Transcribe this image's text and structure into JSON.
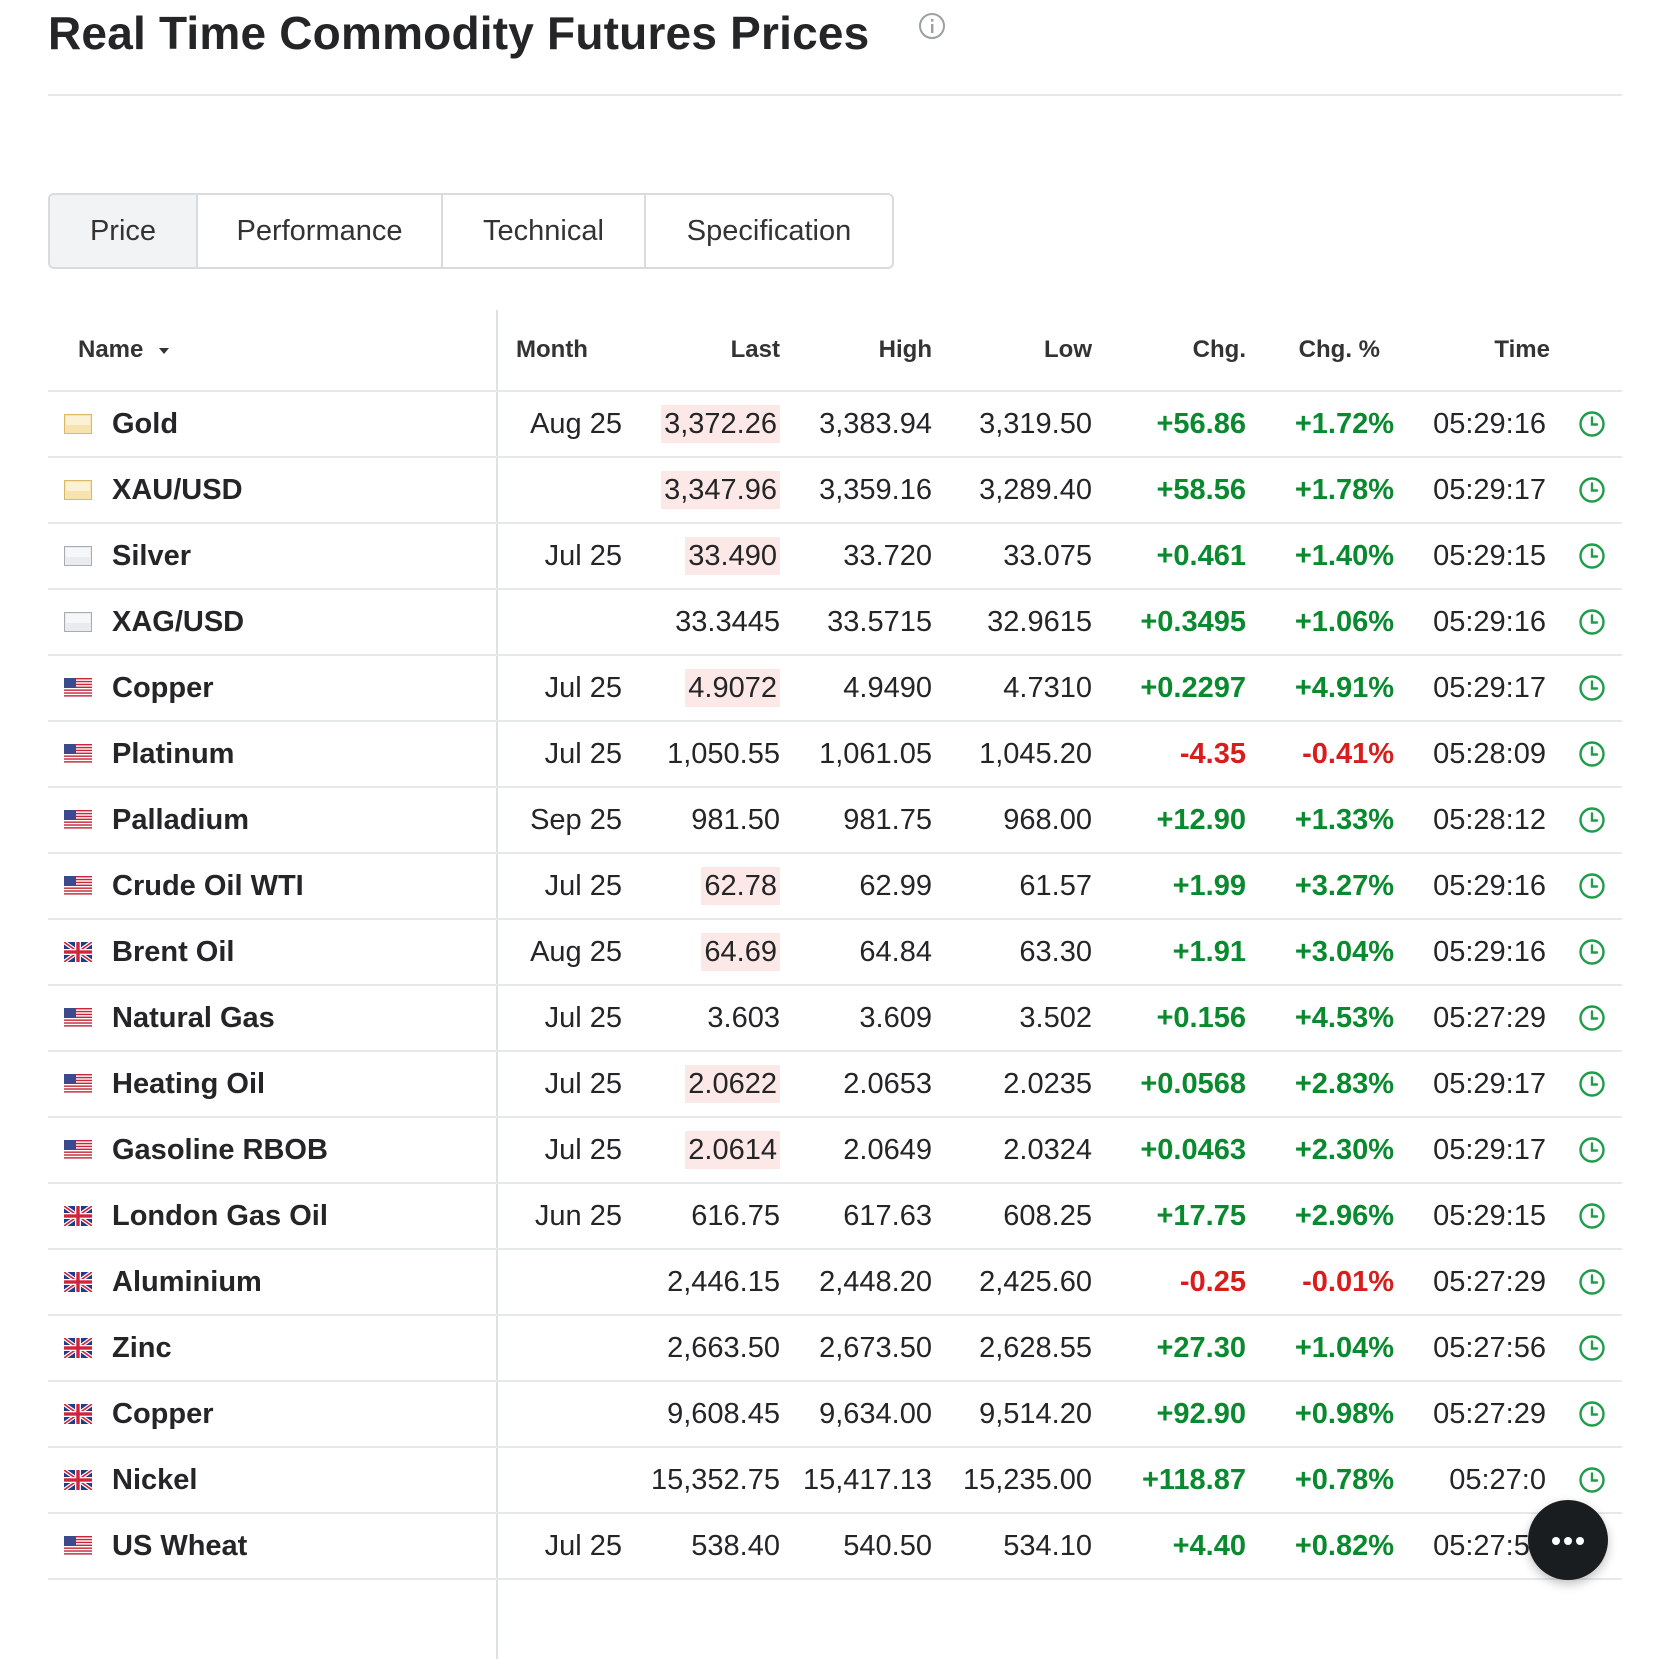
{
  "header": {
    "title": "Real Time Commodity Futures Prices"
  },
  "tabs": [
    {
      "label": "Price",
      "active": true
    },
    {
      "label": "Performance",
      "active": false
    },
    {
      "label": "Technical",
      "active": false
    },
    {
      "label": "Specification",
      "active": false
    }
  ],
  "table": {
    "columns": {
      "name": "Name",
      "month": "Month",
      "last": "Last",
      "high": "High",
      "low": "Low",
      "chg": "Chg.",
      "chg_pct": "Chg. %",
      "time": "Time"
    },
    "rows": [
      {
        "flag": "gold-square",
        "name": "Gold",
        "month": "Aug 25",
        "last": "3,372.26",
        "last_highlight": true,
        "high": "3,383.94",
        "low": "3,319.50",
        "chg": "+56.86",
        "chg_pct": "+1.72%",
        "time": "05:29:16",
        "direction": "up"
      },
      {
        "flag": "gold-square",
        "name": "XAU/USD",
        "month": "",
        "last": "3,347.96",
        "last_highlight": true,
        "high": "3,359.16",
        "low": "3,289.40",
        "chg": "+58.56",
        "chg_pct": "+1.78%",
        "time": "05:29:17",
        "direction": "up"
      },
      {
        "flag": "silver-square",
        "name": "Silver",
        "month": "Jul 25",
        "last": "33.490",
        "last_highlight": true,
        "high": "33.720",
        "low": "33.075",
        "chg": "+0.461",
        "chg_pct": "+1.40%",
        "time": "05:29:15",
        "direction": "up"
      },
      {
        "flag": "silver-square",
        "name": "XAG/USD",
        "month": "",
        "last": "33.3445",
        "last_highlight": false,
        "high": "33.5715",
        "low": "32.9615",
        "chg": "+0.3495",
        "chg_pct": "+1.06%",
        "time": "05:29:16",
        "direction": "up"
      },
      {
        "flag": "us-flag",
        "name": "Copper",
        "month": "Jul 25",
        "last": "4.9072",
        "last_highlight": true,
        "high": "4.9490",
        "low": "4.7310",
        "chg": "+0.2297",
        "chg_pct": "+4.91%",
        "time": "05:29:17",
        "direction": "up"
      },
      {
        "flag": "us-flag",
        "name": "Platinum",
        "month": "Jul 25",
        "last": "1,050.55",
        "last_highlight": false,
        "high": "1,061.05",
        "low": "1,045.20",
        "chg": "-4.35",
        "chg_pct": "-0.41%",
        "time": "05:28:09",
        "direction": "down"
      },
      {
        "flag": "us-flag",
        "name": "Palladium",
        "month": "Sep 25",
        "last": "981.50",
        "last_highlight": false,
        "high": "981.75",
        "low": "968.00",
        "chg": "+12.90",
        "chg_pct": "+1.33%",
        "time": "05:28:12",
        "direction": "up"
      },
      {
        "flag": "us-flag",
        "name": "Crude Oil WTI",
        "month": "Jul 25",
        "last": "62.78",
        "last_highlight": true,
        "high": "62.99",
        "low": "61.57",
        "chg": "+1.99",
        "chg_pct": "+3.27%",
        "time": "05:29:16",
        "direction": "up"
      },
      {
        "flag": "uk-flag",
        "name": "Brent Oil",
        "month": "Aug 25",
        "last": "64.69",
        "last_highlight": true,
        "high": "64.84",
        "low": "63.30",
        "chg": "+1.91",
        "chg_pct": "+3.04%",
        "time": "05:29:16",
        "direction": "up"
      },
      {
        "flag": "us-flag",
        "name": "Natural Gas",
        "month": "Jul 25",
        "last": "3.603",
        "last_highlight": false,
        "high": "3.609",
        "low": "3.502",
        "chg": "+0.156",
        "chg_pct": "+4.53%",
        "time": "05:27:29",
        "direction": "up"
      },
      {
        "flag": "us-flag",
        "name": "Heating Oil",
        "month": "Jul 25",
        "last": "2.0622",
        "last_highlight": true,
        "high": "2.0653",
        "low": "2.0235",
        "chg": "+0.0568",
        "chg_pct": "+2.83%",
        "time": "05:29:17",
        "direction": "up"
      },
      {
        "flag": "us-flag",
        "name": "Gasoline RBOB",
        "month": "Jul 25",
        "last": "2.0614",
        "last_highlight": true,
        "high": "2.0649",
        "low": "2.0324",
        "chg": "+0.0463",
        "chg_pct": "+2.30%",
        "time": "05:29:17",
        "direction": "up"
      },
      {
        "flag": "uk-flag",
        "name": "London Gas Oil",
        "month": "Jun 25",
        "last": "616.75",
        "last_highlight": false,
        "high": "617.63",
        "low": "608.25",
        "chg": "+17.75",
        "chg_pct": "+2.96%",
        "time": "05:29:15",
        "direction": "up"
      },
      {
        "flag": "uk-flag",
        "name": "Aluminium",
        "month": "",
        "last": "2,446.15",
        "last_highlight": false,
        "high": "2,448.20",
        "low": "2,425.60",
        "chg": "-0.25",
        "chg_pct": "-0.01%",
        "time": "05:27:29",
        "direction": "down"
      },
      {
        "flag": "uk-flag",
        "name": "Zinc",
        "month": "",
        "last": "2,663.50",
        "last_highlight": false,
        "high": "2,673.50",
        "low": "2,628.55",
        "chg": "+27.30",
        "chg_pct": "+1.04%",
        "time": "05:27:56",
        "direction": "up"
      },
      {
        "flag": "uk-flag",
        "name": "Copper",
        "month": "",
        "last": "9,608.45",
        "last_highlight": false,
        "high": "9,634.00",
        "low": "9,514.20",
        "chg": "+92.90",
        "chg_pct": "+0.98%",
        "time": "05:27:29",
        "direction": "up"
      },
      {
        "flag": "uk-flag",
        "name": "Nickel",
        "month": "",
        "last": "15,352.75",
        "last_highlight": false,
        "high": "15,417.13",
        "low": "15,235.00",
        "chg": "+118.87",
        "chg_pct": "+0.78%",
        "time": "05:27:0",
        "direction": "up"
      },
      {
        "flag": "us-flag",
        "name": "US Wheat",
        "month": "Jul 25",
        "last": "538.40",
        "last_highlight": false,
        "high": "540.50",
        "low": "534.10",
        "chg": "+4.40",
        "chg_pct": "+0.82%",
        "time": "05:27:56",
        "direction": "up"
      }
    ]
  },
  "colors": {
    "up": "#0a8a2e",
    "down": "#d91c1c",
    "highlight": "#fde8e8",
    "clock": "#1f9d4a"
  },
  "icons": {
    "info": "info-circle-icon",
    "clock": "clock-icon",
    "sort": "caret-down-icon",
    "fab": "more-dots-icon"
  }
}
